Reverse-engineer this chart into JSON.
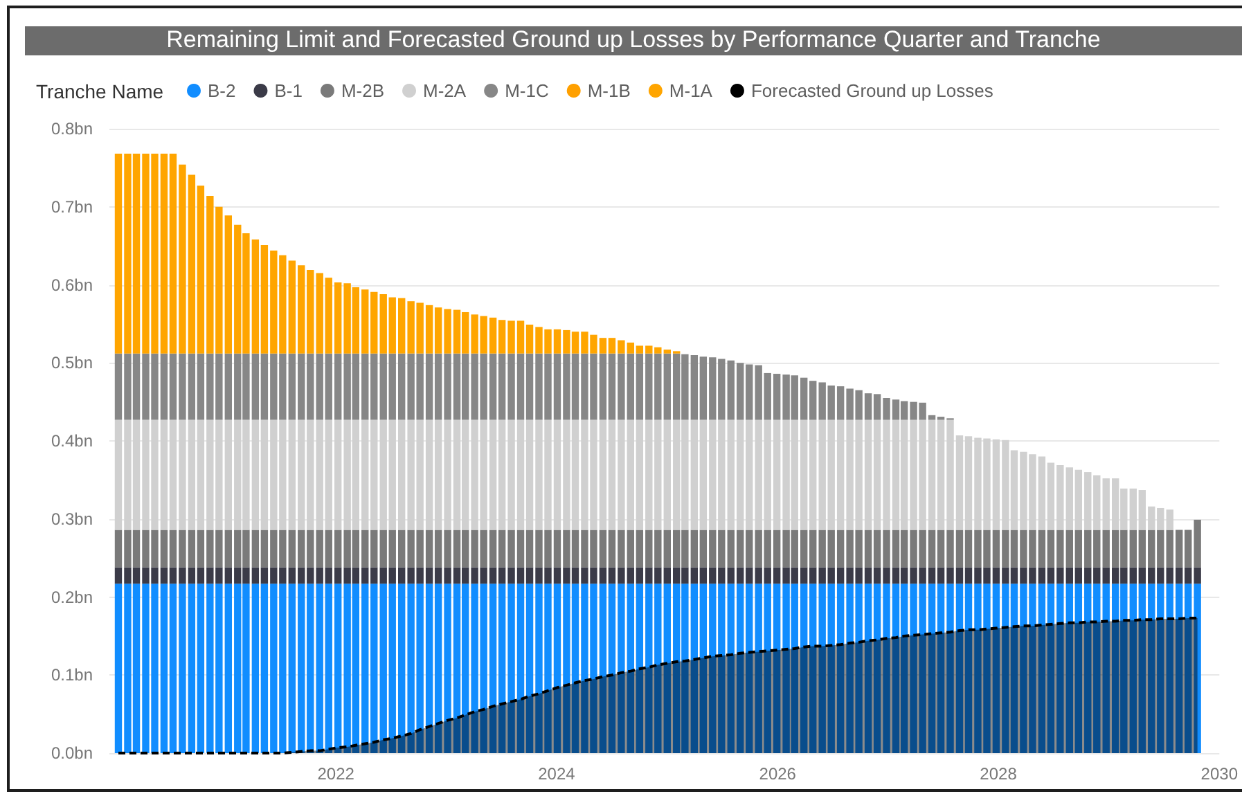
{
  "chart_data": {
    "type": "bar",
    "title": "Remaining Limit and Forecasted Ground up Losses by Performance Quarter and Tranche",
    "legend_title": "Tranche Name",
    "legend": "top left",
    "stacked": true,
    "grid": "y",
    "x": [
      "2020-01",
      "2020-02",
      "2020-03",
      "2020-04",
      "2020-05",
      "2020-06",
      "2020-07",
      "2020-08",
      "2020-09",
      "2020-10",
      "2020-11",
      "2020-12",
      "2021-01",
      "2021-02",
      "2021-03",
      "2021-04",
      "2021-05",
      "2021-06",
      "2021-07",
      "2021-08",
      "2021-09",
      "2021-10",
      "2021-11",
      "2021-12",
      "2022-01",
      "2022-02",
      "2022-03",
      "2022-04",
      "2022-05",
      "2022-06",
      "2022-07",
      "2022-08",
      "2022-09",
      "2022-10",
      "2022-11",
      "2022-12",
      "2023-01",
      "2023-02",
      "2023-03",
      "2023-04",
      "2023-05",
      "2023-06",
      "2023-07",
      "2023-08",
      "2023-09",
      "2023-10",
      "2023-11",
      "2023-12",
      "2024-01",
      "2024-02",
      "2024-03",
      "2024-04",
      "2024-05",
      "2024-06",
      "2024-07",
      "2024-08",
      "2024-09",
      "2024-10",
      "2024-11",
      "2024-12",
      "2025-01",
      "2025-02",
      "2025-03",
      "2025-04",
      "2025-05",
      "2025-06",
      "2025-07",
      "2025-08",
      "2025-09",
      "2025-10",
      "2025-11",
      "2025-12",
      "2026-01",
      "2026-02",
      "2026-03",
      "2026-04",
      "2026-05",
      "2026-06",
      "2026-07",
      "2026-08",
      "2026-09",
      "2026-10",
      "2026-11",
      "2026-12",
      "2027-01",
      "2027-02",
      "2027-03",
      "2027-04",
      "2027-05",
      "2027-06",
      "2027-07",
      "2027-08",
      "2027-09",
      "2027-10",
      "2027-11",
      "2027-12",
      "2028-01",
      "2028-02",
      "2028-03",
      "2028-04",
      "2028-05",
      "2028-06",
      "2028-07",
      "2028-08",
      "2028-09",
      "2028-10",
      "2028-11",
      "2028-12",
      "2029-01",
      "2029-02",
      "2029-03",
      "2029-04",
      "2029-05",
      "2029-06",
      "2029-07",
      "2029-08",
      "2029-09",
      "2029-10",
      "2029-11"
    ],
    "xlim": [
      "2019-12-14",
      "2030-01-01"
    ],
    "xticks": [
      "2022",
      "2024",
      "2026",
      "2028",
      "2030"
    ],
    "ylim": [
      0,
      0.8
    ],
    "yticks": [
      {
        "value": 0,
        "label": "0.0bn"
      },
      {
        "value": 0.1,
        "label": "0.1bn"
      },
      {
        "value": 0.2,
        "label": "0.2bn"
      },
      {
        "value": 0.3,
        "label": "0.3bn"
      },
      {
        "value": 0.4,
        "label": "0.4bn"
      },
      {
        "value": 0.5,
        "label": "0.5bn"
      },
      {
        "value": 0.6,
        "label": "0.6bn"
      },
      {
        "value": 0.7,
        "label": "0.7bn"
      },
      {
        "value": 0.8,
        "label": "0.8bn"
      }
    ],
    "series": [
      {
        "name": "B-2",
        "color": "#118dff",
        "values": [
          0.217,
          0.217,
          0.217,
          0.217,
          0.217,
          0.217,
          0.217,
          0.217,
          0.217,
          0.217,
          0.217,
          0.217,
          0.217,
          0.217,
          0.217,
          0.217,
          0.217,
          0.217,
          0.217,
          0.217,
          0.217,
          0.217,
          0.217,
          0.217,
          0.217,
          0.217,
          0.217,
          0.217,
          0.217,
          0.217,
          0.217,
          0.217,
          0.217,
          0.217,
          0.217,
          0.217,
          0.217,
          0.217,
          0.217,
          0.217,
          0.217,
          0.217,
          0.217,
          0.217,
          0.217,
          0.217,
          0.217,
          0.217,
          0.217,
          0.217,
          0.217,
          0.217,
          0.217,
          0.217,
          0.217,
          0.217,
          0.217,
          0.217,
          0.217,
          0.217,
          0.217,
          0.217,
          0.217,
          0.217,
          0.217,
          0.217,
          0.217,
          0.217,
          0.217,
          0.217,
          0.217,
          0.217,
          0.217,
          0.217,
          0.217,
          0.217,
          0.217,
          0.217,
          0.217,
          0.217,
          0.217,
          0.217,
          0.217,
          0.217,
          0.217,
          0.217,
          0.217,
          0.217,
          0.217,
          0.217,
          0.217,
          0.217,
          0.217,
          0.217,
          0.217,
          0.217,
          0.217,
          0.217,
          0.217,
          0.217,
          0.217,
          0.217,
          0.217,
          0.217,
          0.217,
          0.217,
          0.217,
          0.217,
          0.217,
          0.217,
          0.217,
          0.217,
          0.217,
          0.217,
          0.217,
          0.217,
          0.217,
          0.217,
          0.217
        ]
      },
      {
        "name": "B-1",
        "color": "#3b3b48",
        "values": [
          0.021,
          0.021,
          0.021,
          0.021,
          0.021,
          0.021,
          0.021,
          0.021,
          0.021,
          0.021,
          0.021,
          0.021,
          0.021,
          0.021,
          0.021,
          0.021,
          0.021,
          0.021,
          0.021,
          0.021,
          0.021,
          0.021,
          0.021,
          0.021,
          0.021,
          0.021,
          0.021,
          0.021,
          0.021,
          0.021,
          0.021,
          0.021,
          0.021,
          0.021,
          0.021,
          0.021,
          0.021,
          0.021,
          0.021,
          0.021,
          0.021,
          0.021,
          0.021,
          0.021,
          0.021,
          0.021,
          0.021,
          0.021,
          0.021,
          0.021,
          0.021,
          0.021,
          0.021,
          0.021,
          0.021,
          0.021,
          0.021,
          0.021,
          0.021,
          0.021,
          0.021,
          0.021,
          0.021,
          0.021,
          0.021,
          0.021,
          0.021,
          0.021,
          0.021,
          0.021,
          0.021,
          0.021,
          0.021,
          0.021,
          0.021,
          0.021,
          0.021,
          0.021,
          0.021,
          0.021,
          0.021,
          0.021,
          0.021,
          0.021,
          0.021,
          0.021,
          0.021,
          0.021,
          0.021,
          0.021,
          0.021,
          0.021,
          0.021,
          0.021,
          0.021,
          0.021,
          0.021,
          0.021,
          0.021,
          0.021,
          0.021,
          0.021,
          0.021,
          0.021,
          0.021,
          0.021,
          0.021,
          0.021,
          0.021,
          0.021,
          0.021,
          0.021,
          0.021,
          0.021,
          0.021,
          0.021,
          0.021,
          0.021,
          0.021
        ]
      },
      {
        "name": "M-2B",
        "color": "#7a7a7a",
        "values": [
          0.048,
          0.048,
          0.048,
          0.048,
          0.048,
          0.048,
          0.048,
          0.048,
          0.048,
          0.048,
          0.048,
          0.048,
          0.048,
          0.048,
          0.048,
          0.048,
          0.048,
          0.048,
          0.048,
          0.048,
          0.048,
          0.048,
          0.048,
          0.048,
          0.048,
          0.048,
          0.048,
          0.048,
          0.048,
          0.048,
          0.048,
          0.048,
          0.048,
          0.048,
          0.048,
          0.048,
          0.048,
          0.048,
          0.048,
          0.048,
          0.048,
          0.048,
          0.048,
          0.048,
          0.048,
          0.048,
          0.048,
          0.048,
          0.048,
          0.048,
          0.048,
          0.048,
          0.048,
          0.048,
          0.048,
          0.048,
          0.048,
          0.048,
          0.048,
          0.048,
          0.048,
          0.048,
          0.048,
          0.048,
          0.048,
          0.048,
          0.048,
          0.048,
          0.048,
          0.048,
          0.048,
          0.048,
          0.048,
          0.048,
          0.048,
          0.048,
          0.048,
          0.048,
          0.048,
          0.048,
          0.048,
          0.048,
          0.048,
          0.048,
          0.048,
          0.048,
          0.048,
          0.048,
          0.048,
          0.048,
          0.048,
          0.048,
          0.048,
          0.048,
          0.048,
          0.048,
          0.048,
          0.048,
          0.048,
          0.048,
          0.048,
          0.048,
          0.048,
          0.048,
          0.048,
          0.048,
          0.048,
          0.048,
          0.048,
          0.048,
          0.048,
          0.048,
          0.048,
          0.048,
          0.048,
          0.048,
          0.048,
          0.048,
          0.061
        ]
      },
      {
        "name": "M-2A",
        "color": "#d0d0d0",
        "values": [
          0.141,
          0.141,
          0.141,
          0.141,
          0.141,
          0.141,
          0.141,
          0.141,
          0.141,
          0.141,
          0.141,
          0.141,
          0.141,
          0.141,
          0.141,
          0.141,
          0.141,
          0.141,
          0.141,
          0.141,
          0.141,
          0.141,
          0.141,
          0.141,
          0.141,
          0.141,
          0.141,
          0.141,
          0.141,
          0.141,
          0.141,
          0.141,
          0.141,
          0.141,
          0.141,
          0.141,
          0.141,
          0.141,
          0.141,
          0.141,
          0.141,
          0.141,
          0.141,
          0.141,
          0.141,
          0.141,
          0.141,
          0.141,
          0.141,
          0.141,
          0.141,
          0.141,
          0.141,
          0.141,
          0.141,
          0.141,
          0.141,
          0.141,
          0.141,
          0.141,
          0.141,
          0.141,
          0.141,
          0.141,
          0.141,
          0.141,
          0.141,
          0.141,
          0.141,
          0.141,
          0.141,
          0.141,
          0.141,
          0.141,
          0.141,
          0.141,
          0.141,
          0.141,
          0.141,
          0.141,
          0.141,
          0.141,
          0.141,
          0.141,
          0.141,
          0.141,
          0.141,
          0.141,
          0.141,
          0.141,
          0.141,
          0.141,
          0.121,
          0.12,
          0.118,
          0.117,
          0.116,
          0.115,
          0.102,
          0.1,
          0.097,
          0.094,
          0.086,
          0.083,
          0.08,
          0.077,
          0.074,
          0.07,
          0.066,
          0.066,
          0.053,
          0.053,
          0.051,
          0.03,
          0.028,
          0.026,
          null,
          null,
          null
        ]
      },
      {
        "name": "M-1C",
        "color": "#878787",
        "values": [
          0.085,
          0.085,
          0.085,
          0.085,
          0.085,
          0.085,
          0.085,
          0.085,
          0.085,
          0.085,
          0.085,
          0.085,
          0.085,
          0.085,
          0.085,
          0.085,
          0.085,
          0.085,
          0.085,
          0.085,
          0.085,
          0.085,
          0.085,
          0.085,
          0.085,
          0.085,
          0.085,
          0.085,
          0.085,
          0.085,
          0.085,
          0.085,
          0.085,
          0.085,
          0.085,
          0.085,
          0.085,
          0.085,
          0.085,
          0.085,
          0.085,
          0.085,
          0.085,
          0.085,
          0.085,
          0.085,
          0.085,
          0.085,
          0.085,
          0.085,
          0.085,
          0.085,
          0.085,
          0.085,
          0.085,
          0.085,
          0.085,
          0.085,
          0.085,
          0.085,
          0.085,
          0.085,
          0.084,
          0.083,
          0.081,
          0.08,
          0.078,
          0.076,
          0.073,
          0.071,
          0.07,
          0.06,
          0.059,
          0.058,
          0.057,
          0.054,
          0.05,
          0.048,
          0.044,
          0.043,
          0.04,
          0.038,
          0.034,
          0.033,
          0.028,
          0.026,
          0.024,
          0.023,
          0.022,
          0.006,
          0.004,
          0.002,
          null,
          null,
          null,
          null,
          null,
          null,
          null,
          null,
          null,
          null,
          null,
          null,
          null,
          null,
          null,
          null,
          null,
          null,
          null,
          null,
          null,
          null,
          null,
          null,
          null,
          null,
          null
        ]
      },
      {
        "name": "M-1B",
        "color": "#ffa000",
        "values": [
          null,
          null,
          null,
          null,
          null,
          null,
          null,
          null,
          null,
          null,
          null,
          null,
          null,
          null,
          null,
          null,
          null,
          null,
          null,
          null,
          null,
          null,
          null,
          null,
          null,
          null,
          null,
          null,
          null,
          null,
          null,
          null,
          null,
          null,
          null,
          null,
          null,
          null,
          null,
          null,
          null,
          null,
          null,
          null,
          null,
          null,
          null,
          null,
          null,
          null,
          null,
          null,
          null,
          null,
          null,
          null,
          null,
          null,
          null,
          null,
          null,
          null,
          null,
          null,
          null,
          null,
          null,
          null,
          null,
          null,
          null,
          null,
          null,
          null,
          null,
          null,
          null,
          null,
          null,
          null,
          null,
          null,
          null,
          null,
          null,
          null,
          null,
          null,
          null,
          null,
          null,
          null,
          null,
          null,
          null,
          null,
          null,
          null,
          null,
          null,
          null,
          null,
          null,
          null,
          null,
          null,
          null,
          null,
          null,
          null,
          null,
          null,
          null,
          null,
          null,
          null,
          null,
          null,
          null
        ]
      },
      {
        "name": "M-1A",
        "color": "#ffa500",
        "values": [
          0.256,
          0.256,
          0.256,
          0.256,
          0.256,
          0.256,
          0.256,
          0.242,
          0.229,
          0.215,
          0.202,
          0.188,
          0.177,
          0.165,
          0.154,
          0.146,
          0.139,
          0.132,
          0.126,
          0.119,
          0.113,
          0.107,
          0.103,
          0.097,
          0.091,
          0.09,
          0.085,
          0.082,
          0.079,
          0.076,
          0.072,
          0.071,
          0.067,
          0.065,
          0.062,
          0.059,
          0.057,
          0.056,
          0.053,
          0.05,
          0.048,
          0.046,
          0.043,
          0.042,
          0.042,
          0.037,
          0.034,
          0.031,
          0.031,
          0.03,
          0.028,
          0.028,
          0.024,
          0.02,
          0.02,
          0.017,
          0.014,
          0.01,
          0.01,
          0.008,
          0.005,
          0.003,
          null,
          null,
          null,
          null,
          null,
          null,
          null,
          null,
          null,
          null,
          null,
          null,
          null,
          null,
          null,
          null,
          null,
          null,
          null,
          null,
          null,
          null,
          null,
          null,
          null,
          null,
          null,
          null,
          null,
          null,
          null,
          null,
          null,
          null,
          null,
          null,
          null,
          null,
          null,
          null,
          null,
          null,
          null,
          null,
          null,
          null,
          null,
          null,
          null,
          null,
          null,
          null,
          null,
          null,
          null,
          null,
          null
        ]
      },
      {
        "name": "Forecasted Ground up Losses",
        "type": "area",
        "color": "#000000",
        "line_style": "dashed",
        "values": [
          0,
          0,
          0,
          0,
          0,
          0,
          0,
          0,
          0,
          0,
          0,
          0,
          0,
          0,
          0,
          0,
          0,
          0,
          0,
          0.001,
          0.002,
          0.003,
          0.003,
          0.005,
          0.007,
          0.008,
          0.01,
          0.012,
          0.014,
          0.017,
          0.019,
          0.022,
          0.025,
          0.03,
          0.034,
          0.038,
          0.042,
          0.045,
          0.049,
          0.053,
          0.056,
          0.06,
          0.063,
          0.066,
          0.069,
          0.073,
          0.076,
          0.08,
          0.084,
          0.087,
          0.09,
          0.093,
          0.095,
          0.098,
          0.1,
          0.103,
          0.105,
          0.108,
          0.11,
          0.113,
          0.115,
          0.117,
          0.118,
          0.12,
          0.122,
          0.124,
          0.125,
          0.126,
          0.128,
          0.129,
          0.13,
          0.131,
          0.132,
          0.133,
          0.134,
          0.136,
          0.137,
          0.137,
          0.138,
          0.139,
          0.141,
          0.142,
          0.144,
          0.145,
          0.147,
          0.148,
          0.15,
          0.151,
          0.152,
          0.153,
          0.154,
          0.155,
          0.157,
          0.158,
          0.158,
          0.159,
          0.16,
          0.161,
          0.162,
          0.163,
          0.163,
          0.164,
          0.165,
          0.166,
          0.167,
          0.167,
          0.168,
          0.168,
          0.169,
          0.169,
          0.17,
          0.17,
          0.171,
          0.171,
          0.172,
          0.172,
          0.172,
          0.173,
          0.173
        ]
      }
    ]
  }
}
